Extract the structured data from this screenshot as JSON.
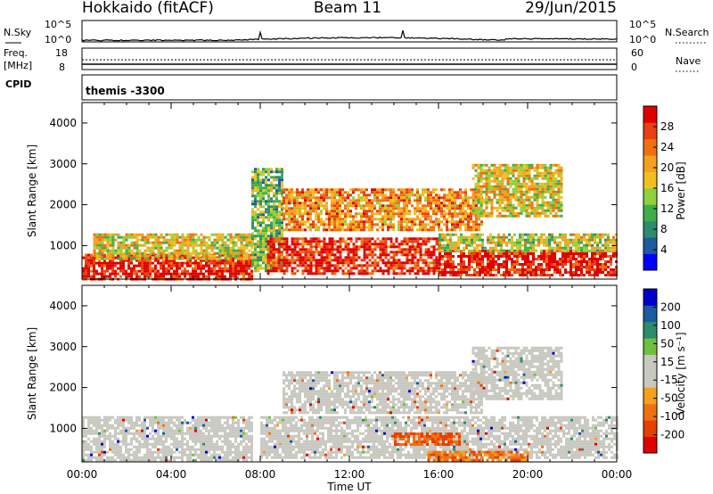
{
  "header": {
    "radar": "Hokkaido (fitACF)",
    "beam": "Beam 11",
    "date": "29/Jun/2015"
  },
  "noise_panel": {
    "left_label": "N.Sky",
    "right_label": "N.Search",
    "left_ticks": [
      "10^5",
      "10^0"
    ],
    "right_ticks": [
      "10^5",
      "10^0"
    ]
  },
  "freq_panel": {
    "left_label_1": "Freq.",
    "left_label_2": "[MHz]",
    "right_label": "Nave",
    "left_ticks": [
      "18",
      "8"
    ],
    "right_ticks": [
      "60",
      "0"
    ]
  },
  "cpid_panel": {
    "label": "CPID",
    "text": "themis -3300"
  },
  "chart_data": [
    {
      "type": "heatmap",
      "title": "Power",
      "ylabel": "Slant Range [km]",
      "ylim": [
        180,
        4500
      ],
      "yticks": [
        1000,
        2000,
        3000,
        4000
      ],
      "xlim_hours": [
        0,
        24
      ],
      "colorbar": {
        "label": "Power [dB]",
        "ticks": [
          "28",
          "24",
          "20",
          "16",
          "12",
          "8",
          "4"
        ],
        "range": [
          0,
          30
        ],
        "colors": [
          "#0000ff",
          "#1e5aa0",
          "#2e8c6e",
          "#3fae4a",
          "#8fd13a",
          "#f0c020",
          "#f5a020",
          "#f07010",
          "#e84010",
          "#e00000"
        ]
      },
      "regions": [
        {
          "t0": 0.0,
          "t1": 7.6,
          "r0": 200,
          "r1": 800,
          "level": 0.95
        },
        {
          "t0": 0.5,
          "t1": 7.6,
          "r0": 700,
          "r1": 1300,
          "level": 0.55
        },
        {
          "t0": 7.6,
          "t1": 9.0,
          "r0": 400,
          "r1": 2900,
          "level": 0.4
        },
        {
          "t0": 8.3,
          "t1": 16.0,
          "r0": 300,
          "r1": 1200,
          "level": 0.9
        },
        {
          "t0": 9.0,
          "t1": 18.0,
          "r0": 1400,
          "r1": 2400,
          "level": 0.7
        },
        {
          "t0": 16.0,
          "t1": 24.0,
          "r0": 300,
          "r1": 900,
          "level": 0.95
        },
        {
          "t0": 16.0,
          "t1": 24.0,
          "r0": 900,
          "r1": 1300,
          "level": 0.5
        },
        {
          "t0": 17.5,
          "t1": 21.5,
          "r0": 1700,
          "r1": 3000,
          "level": 0.55
        }
      ]
    },
    {
      "type": "heatmap",
      "title": "Velocity",
      "ylabel": "Slant Range [km]",
      "ylim": [
        180,
        4500
      ],
      "yticks": [
        1000,
        2000,
        3000,
        4000
      ],
      "xlim_hours": [
        0,
        24
      ],
      "xticks": [
        "00:00",
        "04:00",
        "08:00",
        "12:00",
        "16:00",
        "20:00",
        "00:00"
      ],
      "xlabel": "Time UT",
      "colorbar": {
        "label": "Velocity [m s⁻¹]",
        "ticks": [
          "200",
          "100",
          "50",
          "15",
          "-15",
          "-50",
          "-100",
          "-200"
        ],
        "range": [
          -250,
          250
        ],
        "colors": [
          "#e00000",
          "#e84000",
          "#f07010",
          "#f5a020",
          "#c8c8c0",
          "#c8c8c0",
          "#70c040",
          "#2e8c6e",
          "#1e5aa0",
          "#0000cc"
        ]
      },
      "regions": [
        {
          "t0": 0.0,
          "t1": 7.6,
          "r0": 200,
          "r1": 1300,
          "level": 0.0
        },
        {
          "t0": 8.0,
          "t1": 24.0,
          "r0": 300,
          "r1": 1300,
          "level": 0.0
        },
        {
          "t0": 9.0,
          "t1": 18.0,
          "r0": 1400,
          "r1": 2400,
          "level": 0.0
        },
        {
          "t0": 17.5,
          "t1": 21.5,
          "r0": 1700,
          "r1": 3000,
          "level": 0.0
        },
        {
          "t0": 14.0,
          "t1": 17.0,
          "r0": 600,
          "r1": 900,
          "level": -0.6
        },
        {
          "t0": 15.5,
          "t1": 20.0,
          "r0": 250,
          "r1": 450,
          "level": -0.5
        }
      ]
    }
  ]
}
